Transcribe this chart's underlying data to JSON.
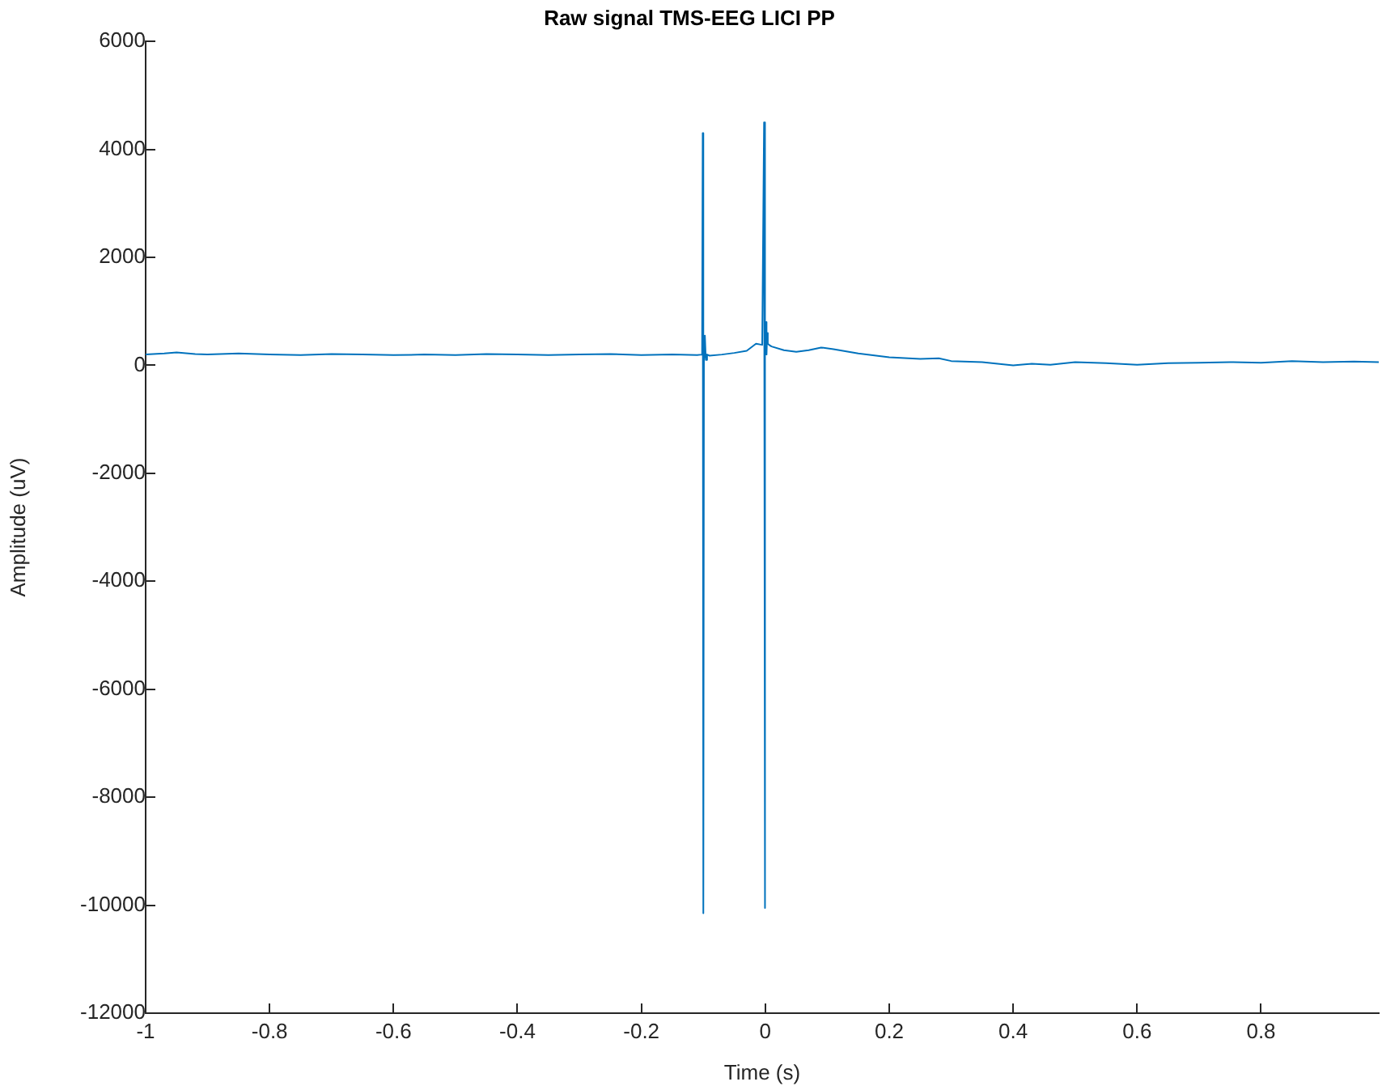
{
  "chart_data": {
    "type": "line",
    "title": "Raw signal TMS-EEG LICI PP",
    "xlabel": "Time (s)",
    "ylabel": "Amplitude (uV)",
    "xlim": [
      -1,
      0.99
    ],
    "xticks": [
      -1,
      -0.8,
      -0.6,
      -0.4,
      -0.2,
      0,
      0.2,
      0.4,
      0.6,
      0.8
    ],
    "ylim": [
      -12000,
      6000
    ],
    "yticks": [
      -12000,
      -10000,
      -8000,
      -6000,
      -4000,
      -2000,
      0,
      2000,
      4000,
      6000
    ],
    "grid": false,
    "legend": false,
    "marker": "none",
    "line_style": "solid",
    "series": [
      {
        "color": "#0072bd",
        "x": [
          -1,
          -0.97,
          -0.95,
          -0.92,
          -0.9,
          -0.85,
          -0.8,
          -0.75,
          -0.7,
          -0.65,
          -0.6,
          -0.55,
          -0.5,
          -0.45,
          -0.4,
          -0.35,
          -0.3,
          -0.25,
          -0.2,
          -0.15,
          -0.11,
          -0.102,
          -0.101,
          -0.1,
          -0.099,
          -0.098,
          -0.097,
          -0.096,
          -0.094,
          -0.09,
          -0.07,
          -0.05,
          -0.03,
          -0.015,
          -0.005,
          -0.002,
          -0.001,
          0,
          0.001,
          0.002,
          0.003,
          0.004,
          0.006,
          0.01,
          0.03,
          0.05,
          0.07,
          0.09,
          0.11,
          0.15,
          0.2,
          0.25,
          0.28,
          0.3,
          0.35,
          0.4,
          0.43,
          0.46,
          0.5,
          0.55,
          0.6,
          0.65,
          0.7,
          0.75,
          0.8,
          0.85,
          0.9,
          0.95,
          0.99
        ],
        "values": [
          200,
          220,
          240,
          210,
          200,
          220,
          200,
          190,
          210,
          200,
          190,
          200,
          190,
          210,
          200,
          190,
          200,
          210,
          190,
          200,
          190,
          200,
          4300,
          -10150,
          500,
          150,
          550,
          100,
          200,
          180,
          200,
          230,
          270,
          400,
          380,
          4500,
          -10050,
          300,
          800,
          200,
          600,
          400,
          380,
          350,
          280,
          250,
          280,
          330,
          300,
          220,
          150,
          120,
          130,
          80,
          60,
          0,
          30,
          10,
          60,
          40,
          10,
          40,
          50,
          60,
          50,
          80,
          60,
          70,
          60
        ]
      }
    ]
  }
}
